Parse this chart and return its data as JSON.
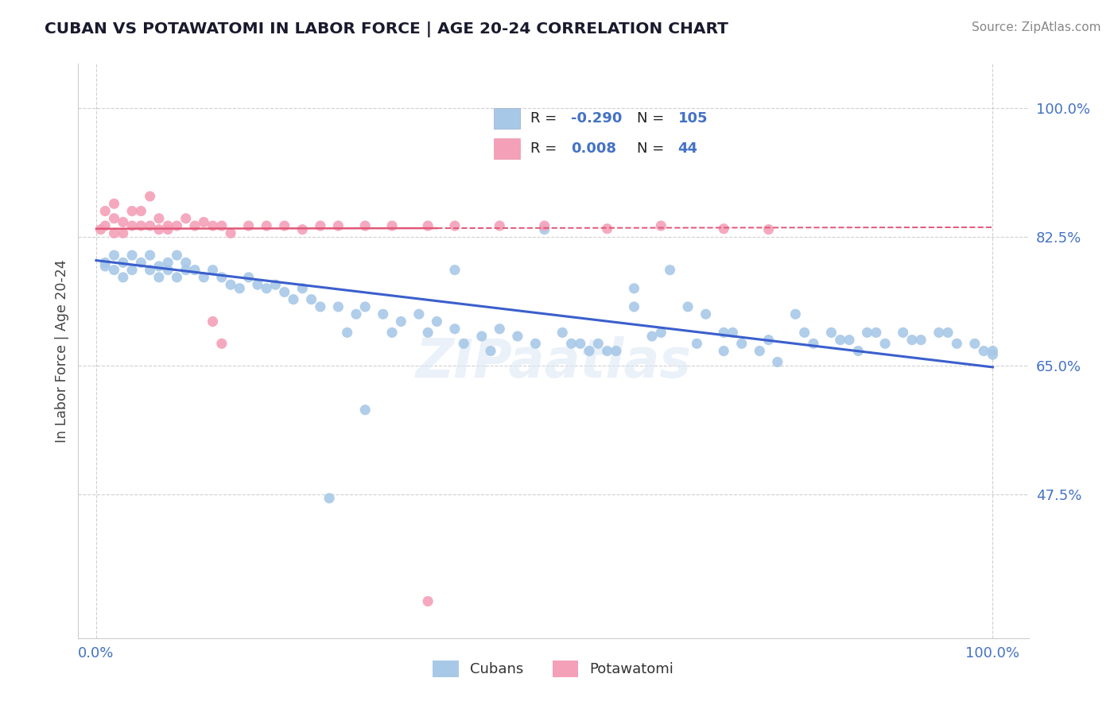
{
  "title": "CUBAN VS POTAWATOMI IN LABOR FORCE | AGE 20-24 CORRELATION CHART",
  "source": "Source: ZipAtlas.com",
  "ylabel": "In Labor Force | Age 20-24",
  "xticklabels": [
    "0.0%",
    "100.0%"
  ],
  "yticklabels": [
    "47.5%",
    "65.0%",
    "82.5%",
    "100.0%"
  ],
  "ylim": [
    0.28,
    1.06
  ],
  "xlim": [
    -0.02,
    1.04
  ],
  "yticks": [
    0.475,
    0.65,
    0.825,
    1.0
  ],
  "xticks": [
    0.0,
    1.0
  ],
  "cubans_R": -0.29,
  "cubans_N": 105,
  "potawatomi_R": 0.008,
  "potawatomi_N": 44,
  "cubans_color": "#a8c8e8",
  "potawatomi_color": "#f4a0b8",
  "trend_cuban_color": "#3a5fcd",
  "trend_potawatomi_color": "#e05878",
  "background_color": "#ffffff",
  "watermark": "ZIPaatlas",
  "legend_R_label_color": "#333333",
  "legend_RN_value_color": "#4472c4",
  "title_color": "#1a1a2e",
  "source_color": "#888888",
  "ylabel_color": "#444444",
  "tick_color": "#4472c4",
  "grid_color": "#d0d0d0",
  "cuban_trend_start_y": 0.793,
  "cuban_trend_end_y": 0.648,
  "pota_trend_y": 0.836,
  "pota_trend_solid_end_x": 0.38,
  "pota_trend_end_x": 1.0
}
